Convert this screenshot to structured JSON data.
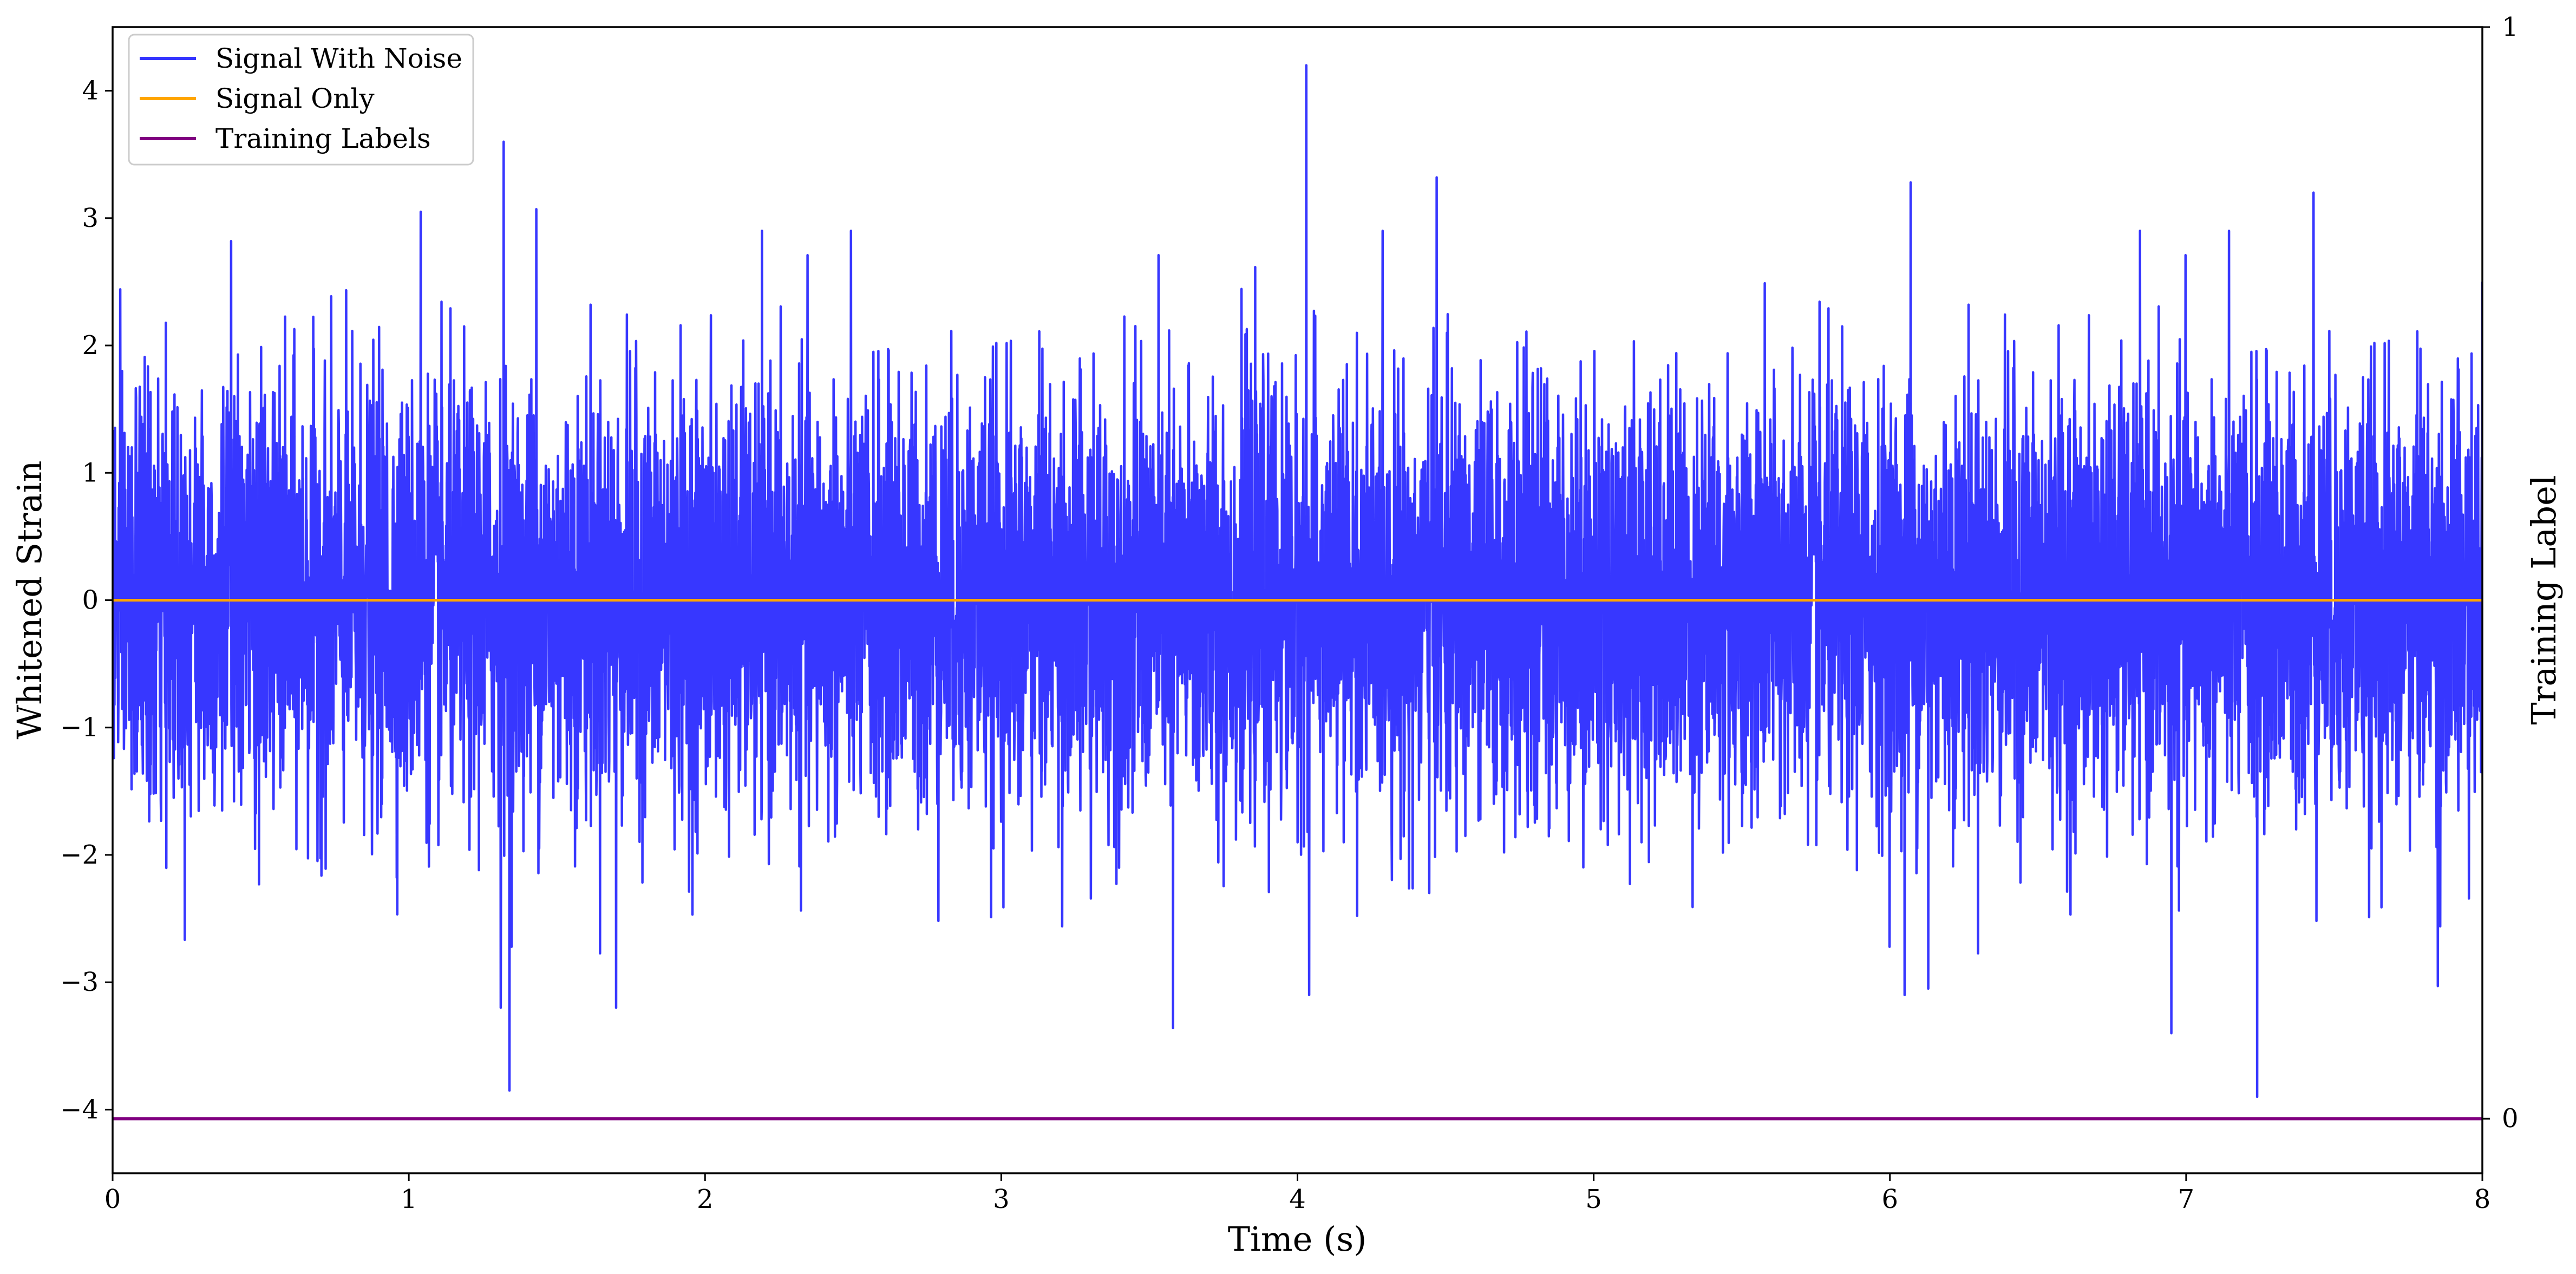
{
  "chart_data": {
    "type": "line",
    "title": "",
    "xlabel": "Time (s)",
    "ylabel": "Whitened Strain",
    "y2label": "Training Label",
    "xlim": [
      0,
      8
    ],
    "ylim": [
      -4.5,
      4.5
    ],
    "y2lim": [
      -0.05,
      1.0
    ],
    "xticks": [
      0,
      1,
      2,
      3,
      4,
      5,
      6,
      7,
      8
    ],
    "xtick_labels": [
      "0",
      "1",
      "2",
      "3",
      "4",
      "5",
      "6",
      "7",
      "8"
    ],
    "yticks": [
      -4,
      -3,
      -2,
      -1,
      0,
      1,
      2,
      3,
      4
    ],
    "ytick_labels": [
      "−4",
      "−3",
      "−2",
      "−1",
      "0",
      "1",
      "2",
      "3",
      "4"
    ],
    "y2ticks": [
      0,
      1
    ],
    "y2tick_labels": [
      "0",
      "1"
    ],
    "grid": false,
    "legend_position": "top-left",
    "sampling": {
      "duration_s": 8,
      "approx_range": [
        -3.9,
        4.2
      ]
    },
    "series": [
      {
        "name": "Signal With Noise",
        "color": "#3333ff",
        "axis": "left",
        "kind": "noise",
        "extremes": [
          {
            "x": 1.32,
            "y": 3.6
          },
          {
            "x": 1.34,
            "y": -3.85
          },
          {
            "x": 1.31,
            "y": -3.2
          },
          {
            "x": 1.7,
            "y": -3.2
          },
          {
            "x": 1.04,
            "y": 3.05
          },
          {
            "x": 1.43,
            "y": 3.07
          },
          {
            "x": 4.03,
            "y": 4.22
          },
          {
            "x": 4.04,
            "y": -3.1
          },
          {
            "x": 4.47,
            "y": 3.32
          },
          {
            "x": 3.58,
            "y": -3.36
          },
          {
            "x": 6.07,
            "y": 3.28
          },
          {
            "x": 6.05,
            "y": -3.1
          },
          {
            "x": 6.13,
            "y": -3.05
          },
          {
            "x": 6.95,
            "y": -3.4
          },
          {
            "x": 7.24,
            "y": -3.9
          },
          {
            "x": 7.43,
            "y": 3.2
          },
          {
            "x": 7.85,
            "y": -3.03
          },
          {
            "x": 0.4,
            "y": 2.82
          },
          {
            "x": 8.0,
            "y": 2.5
          }
        ]
      },
      {
        "name": "Signal Only",
        "color": "#ffa500",
        "axis": "left",
        "x": [
          0,
          8
        ],
        "values": [
          0,
          0
        ]
      },
      {
        "name": "Training Labels",
        "color": "#800080",
        "axis": "right",
        "x": [
          0,
          8
        ],
        "values": [
          0,
          0
        ]
      }
    ]
  }
}
